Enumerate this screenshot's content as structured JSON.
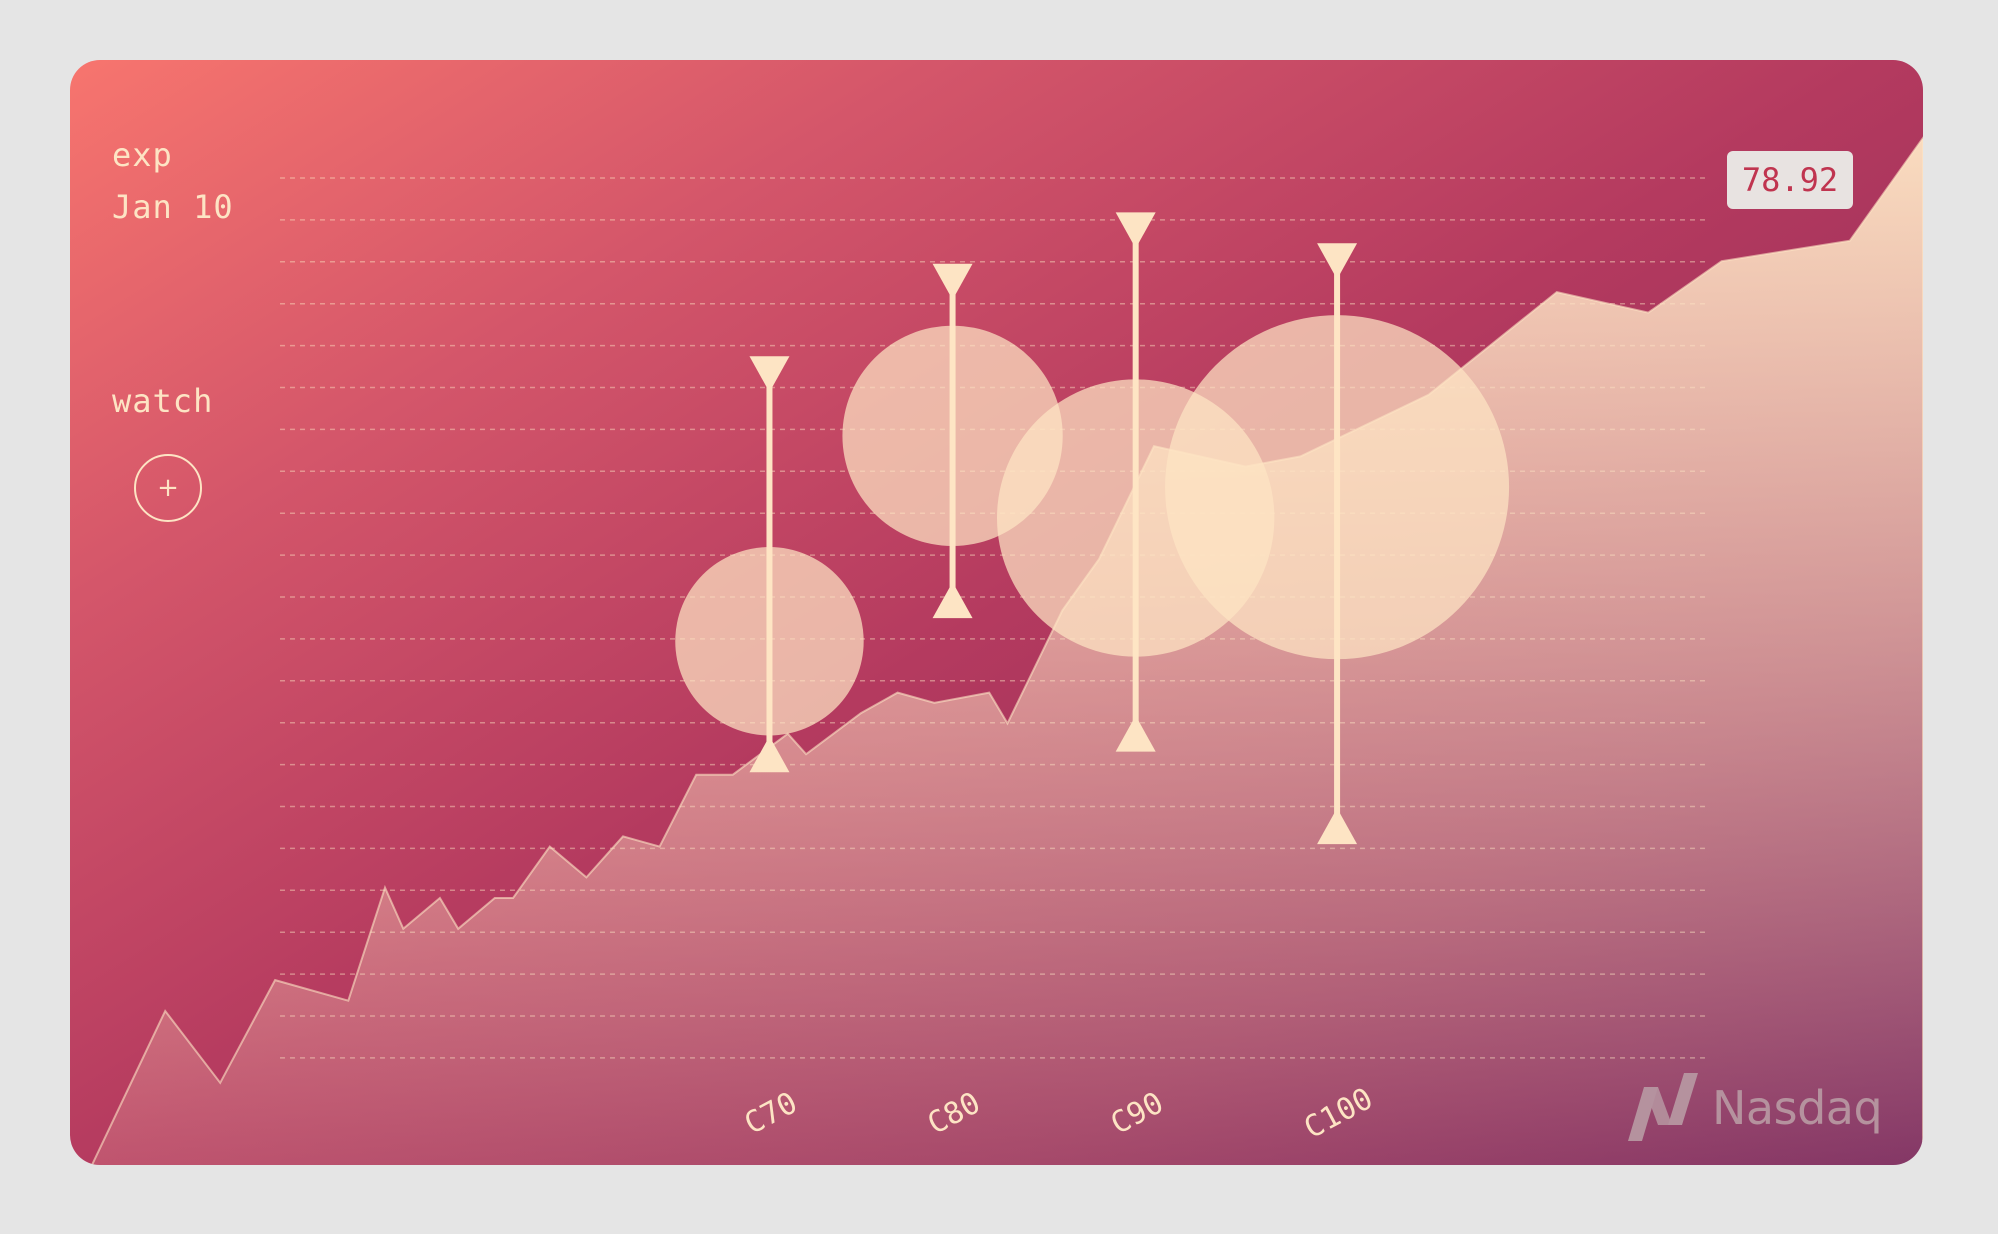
{
  "header": {
    "exp_label": "exp",
    "exp_date": "Jan 10",
    "watch_label": "watch",
    "watch_button_label": "+"
  },
  "price_badge": "78.92",
  "brand": {
    "name": "Nasdaq",
    "icon": "nasdaq-logo-icon"
  },
  "colors": {
    "accent": "#fde4c4",
    "badge_text": "#c0344f",
    "gradient_start": "#f7756e",
    "gradient_end": "#6e1855"
  },
  "chart_data": {
    "type": "area",
    "grid": true,
    "ylim": [
      0,
      100
    ],
    "price_series": [
      [
        0,
        0
      ],
      [
        4,
        15
      ],
      [
        7,
        8
      ],
      [
        10,
        18
      ],
      [
        14,
        16
      ],
      [
        16,
        27
      ],
      [
        17,
        23
      ],
      [
        19,
        26
      ],
      [
        20,
        23
      ],
      [
        22,
        26
      ],
      [
        23,
        26
      ],
      [
        25,
        31
      ],
      [
        27,
        28
      ],
      [
        29,
        32
      ],
      [
        31,
        31
      ],
      [
        33,
        38
      ],
      [
        35,
        38
      ],
      [
        38,
        42
      ],
      [
        39,
        40
      ],
      [
        42,
        44
      ],
      [
        44,
        46
      ],
      [
        46,
        45
      ],
      [
        49,
        46
      ],
      [
        50,
        43
      ],
      [
        53,
        54
      ],
      [
        55,
        59
      ],
      [
        58,
        70
      ],
      [
        63,
        68
      ],
      [
        66,
        69
      ],
      [
        73,
        75
      ],
      [
        80,
        85
      ],
      [
        85,
        83
      ],
      [
        89,
        88
      ],
      [
        96,
        90
      ],
      [
        100,
        100
      ]
    ],
    "options": [
      {
        "label": "C70",
        "x": 37,
        "center": 51,
        "size": 0.3,
        "high": 77,
        "low": 40
      },
      {
        "label": "C80",
        "x": 47,
        "center": 71,
        "size": 0.41,
        "high": 86,
        "low": 55
      },
      {
        "label": "C90",
        "x": 57,
        "center": 63,
        "size": 0.65,
        "high": 91,
        "low": 42
      },
      {
        "label": "C100",
        "x": 68,
        "center": 66,
        "size": 1.0,
        "high": 88,
        "low": 33
      }
    ]
  }
}
